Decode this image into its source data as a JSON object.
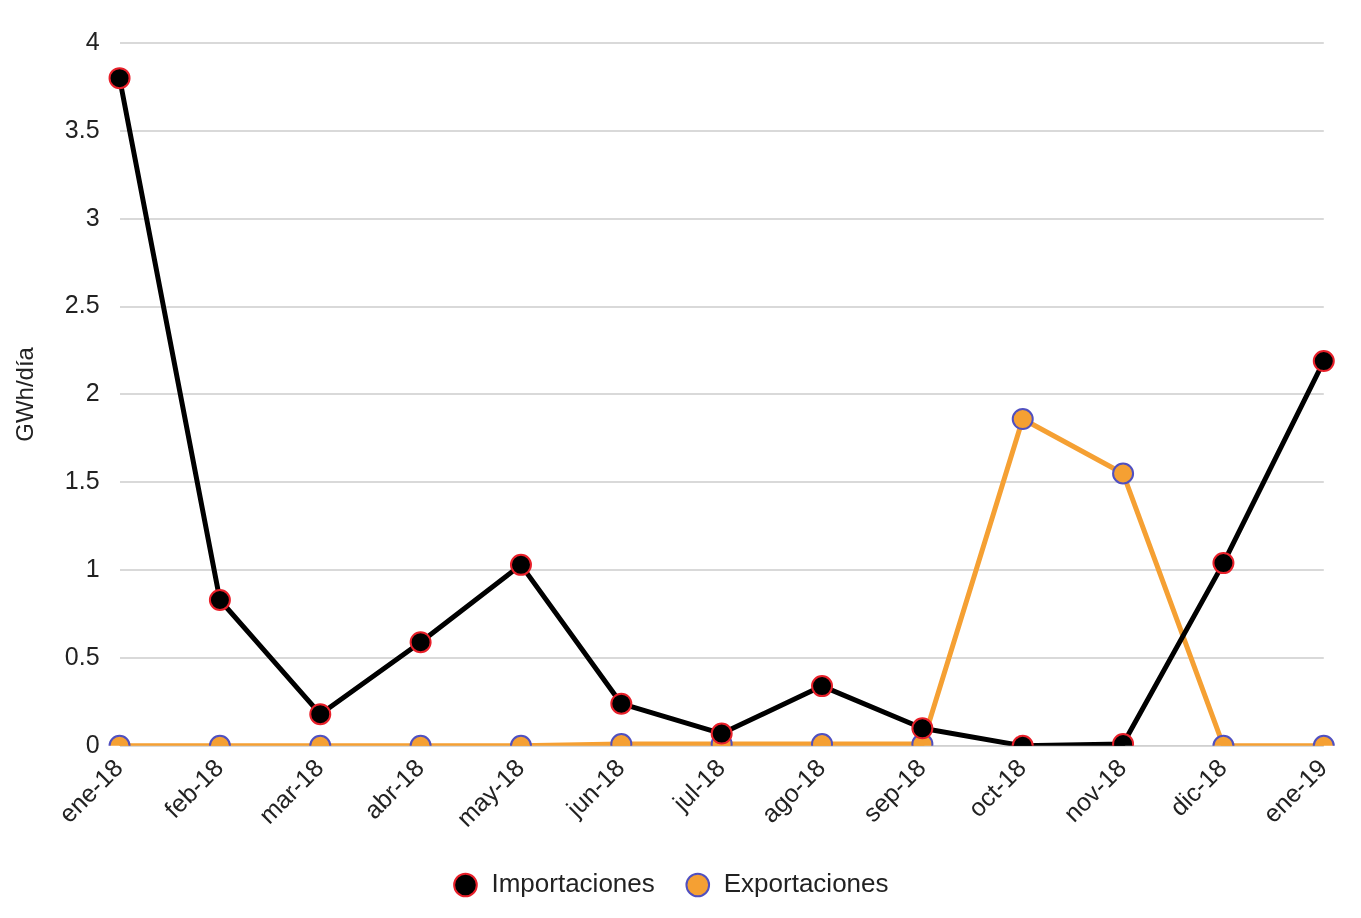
{
  "chart_data": {
    "type": "line",
    "ylabel": "GWh/día",
    "categories": [
      "ene-18",
      "feb-18",
      "mar-18",
      "abr-18",
      "may-18",
      "jun-18",
      "jul-18",
      "ago-18",
      "sep-18",
      "oct-18",
      "nov-18",
      "dic-18",
      "ene-19"
    ],
    "series": [
      {
        "name": "Importaciones",
        "color": "#000000",
        "values": [
          3.8,
          0.83,
          0.18,
          0.59,
          1.03,
          0.24,
          0.07,
          0.34,
          0.1,
          0,
          0.01,
          1.04,
          2.19
        ]
      },
      {
        "name": "Exportaciones",
        "color": "#f5a033",
        "values": [
          0,
          0,
          0,
          0,
          0,
          0.01,
          0.01,
          0.01,
          0.01,
          1.86,
          1.55,
          0,
          0
        ]
      }
    ],
    "ylim": [
      0,
      4
    ],
    "yticks": [
      0,
      0.5,
      1,
      1.5,
      2,
      2.5,
      3,
      3.5,
      4
    ],
    "grid": "y",
    "legend": "bottom",
    "marker": "circle",
    "line_style": "solid"
  }
}
